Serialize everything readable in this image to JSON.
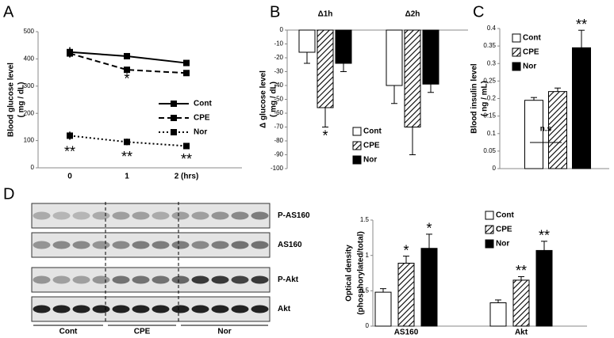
{
  "chart_data": [
    {
      "type": "line",
      "panel": "A",
      "ylabel": "Blood glucose level",
      "ylabel_unit": "( mg / dL)",
      "categories": [
        "0",
        "1",
        "2 (hrs)"
      ],
      "ylim": [
        0,
        500
      ],
      "yticks": [
        0,
        100,
        200,
        300,
        400,
        500
      ],
      "legend": "right",
      "series": [
        {
          "name": "Cont",
          "color": "#000000",
          "dash": "solid",
          "values": [
            425,
            410,
            385
          ],
          "errors": [
            18,
            8,
            8
          ],
          "marks": [
            null,
            null,
            null
          ]
        },
        {
          "name": "CPE",
          "color": "#000000",
          "dash": "dashed",
          "values": [
            420,
            360,
            348
          ],
          "errors": [
            15,
            8,
            6
          ],
          "marks": [
            null,
            "*",
            null
          ]
        },
        {
          "name": "Nor",
          "color": "#000000",
          "dash": "dotted",
          "values": [
            118,
            95,
            80
          ],
          "errors": [
            15,
            12,
            5
          ],
          "marks": [
            "**",
            "**",
            "**"
          ]
        }
      ]
    },
    {
      "type": "bar",
      "panel": "B",
      "ylabel": "Δ glucose level",
      "ylabel_unit": "( mg / dL)",
      "categories": [
        "Δ1h",
        "Δ2h"
      ],
      "ylim": [
        -100,
        0
      ],
      "yticks": [
        0,
        -10,
        -20,
        -30,
        -40,
        -50,
        -60,
        -70,
        -80,
        -90,
        -100
      ],
      "legend": "lower right",
      "series": [
        {
          "name": "Cont",
          "color": "#ffffff",
          "values": [
            -16,
            -40
          ],
          "errors": [
            8,
            13
          ],
          "marks": [
            null,
            null
          ]
        },
        {
          "name": "CPE",
          "color": "#ffffff",
          "pattern": "hatch",
          "values": [
            -56,
            -70
          ],
          "errors": [
            14,
            20
          ],
          "marks": [
            "*",
            null
          ]
        },
        {
          "name": "Nor",
          "color": "#000000",
          "values": [
            -24,
            -39
          ],
          "errors": [
            6,
            6
          ],
          "marks": [
            null,
            null
          ]
        }
      ]
    },
    {
      "type": "bar",
      "panel": "C",
      "ylabel": "Blood insulin level",
      "ylabel_unit": "( ng / mL)",
      "ylim": [
        0,
        0.4
      ],
      "yticks": [
        0,
        0.05,
        0.1,
        0.15,
        0.2,
        0.25,
        0.3,
        0.35,
        0.4
      ],
      "legend": "upper left",
      "annotation": "n.s",
      "series": [
        {
          "name": "Cont",
          "color": "#ffffff",
          "values": [
            0.195
          ],
          "errors": [
            0.008
          ],
          "marks": [
            null
          ]
        },
        {
          "name": "CPE",
          "color": "#ffffff",
          "pattern": "hatch",
          "values": [
            0.22
          ],
          "errors": [
            0.01
          ],
          "marks": [
            null
          ]
        },
        {
          "name": "Nor",
          "color": "#000000",
          "values": [
            0.345
          ],
          "errors": [
            0.05
          ],
          "marks": [
            "**"
          ]
        }
      ]
    },
    {
      "type": "bar",
      "ylabel": "Optical density",
      "ylabel_unit": "(phosphorylated/total)",
      "categories": [
        "AS160",
        "Akt"
      ],
      "ylim": [
        0,
        1.5
      ],
      "yticks": [
        0,
        0.5,
        1,
        1.5
      ],
      "legend": "upper right",
      "series": [
        {
          "name": "Cont",
          "color": "#ffffff",
          "values": [
            0.48,
            0.33
          ],
          "errors": [
            0.05,
            0.04
          ],
          "marks": [
            null,
            null
          ]
        },
        {
          "name": "CPE",
          "color": "#ffffff",
          "pattern": "hatch",
          "values": [
            0.89,
            0.65
          ],
          "errors": [
            0.1,
            0.05
          ],
          "marks": [
            "*",
            "**"
          ]
        },
        {
          "name": "Nor",
          "color": "#000000",
          "values": [
            1.1,
            1.07
          ],
          "errors": [
            0.2,
            0.13
          ],
          "marks": [
            "*",
            "**"
          ]
        }
      ]
    }
  ],
  "blot": {
    "panel": "D",
    "rows": [
      "P-AS160",
      "AS160",
      "P-Akt",
      "Akt"
    ],
    "groups": [
      "Cont",
      "CPE",
      "Nor"
    ]
  }
}
